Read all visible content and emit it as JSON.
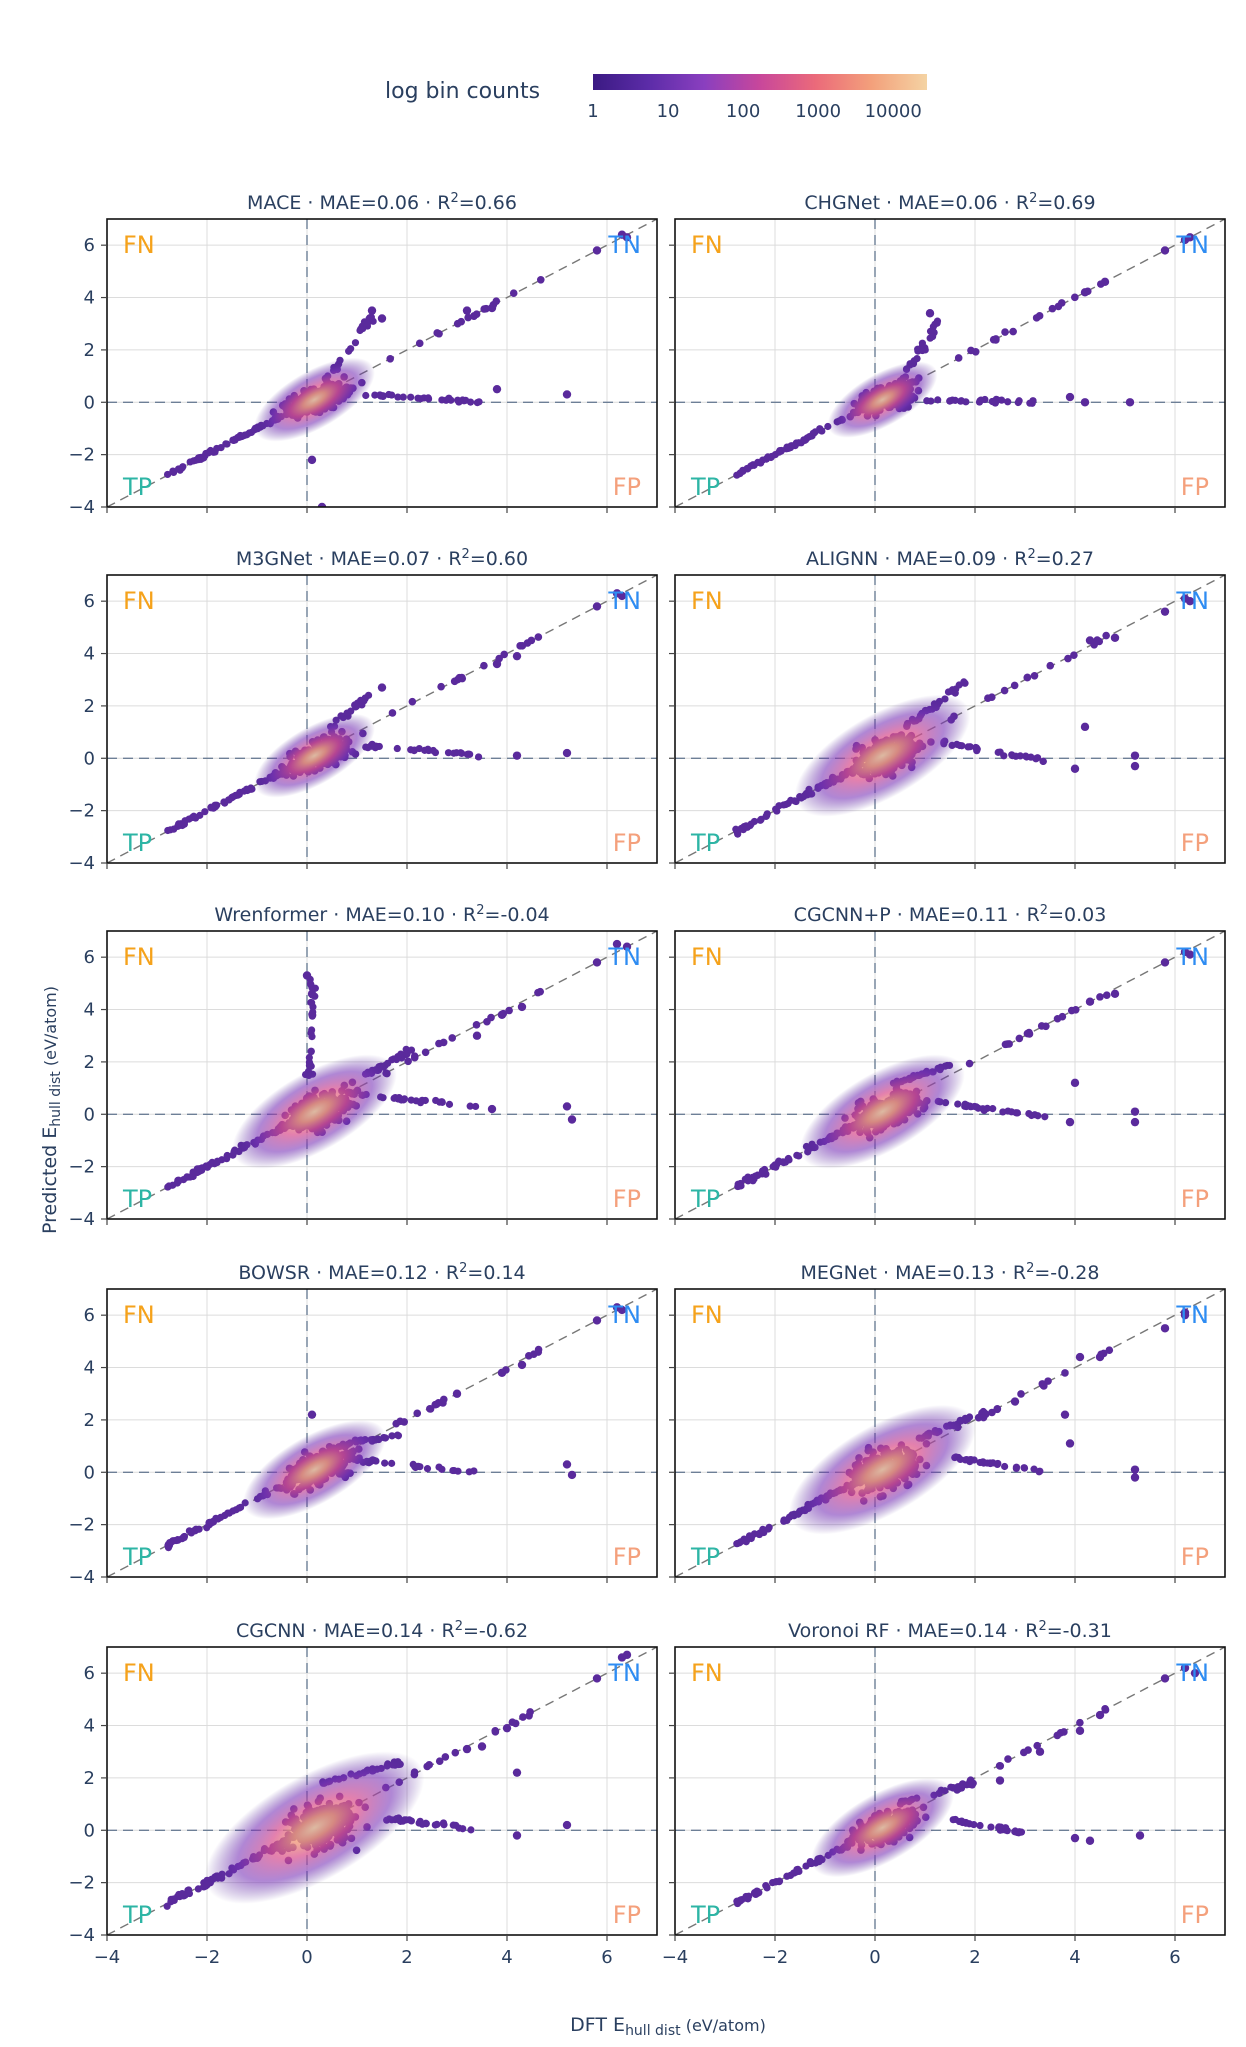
{
  "chart_data": {
    "type": "scatter",
    "subtype": "density-scatter-grid",
    "colorbar": {
      "title": "log bin counts",
      "tick_labels": [
        "1",
        "10",
        "100",
        "1000",
        "10000"
      ],
      "colors": [
        "#3b1a83",
        "#5c2ca8",
        "#8a3fbf",
        "#c8479b",
        "#eb6a7a",
        "#f3a07b",
        "#f4d3a3"
      ]
    },
    "xlabel": "DFT E",
    "xlabel_sub": "hull dist",
    "xlabel_unit": " (eV/atom)",
    "ylabel": "Predicted E",
    "ylabel_sub": "hull dist",
    "ylabel_unit": " (eV/atom)",
    "x_range": [
      -4,
      7
    ],
    "y_range": [
      -4,
      7
    ],
    "x_ticks": [
      -4,
      -2,
      0,
      2,
      4,
      6
    ],
    "y_ticks": [
      -4,
      -2,
      0,
      2,
      4,
      6
    ],
    "x_tick_labels": [
      "−4",
      "−2",
      "0",
      "2",
      "4",
      "6"
    ],
    "y_tick_labels": [
      "−4",
      "−2",
      "0",
      "2",
      "4",
      "6"
    ],
    "quadrant_labels": {
      "FN": "FN",
      "TN": "TN",
      "TP": "TP",
      "FP": "FP"
    },
    "quadrant_colors": {
      "FN": "#f5a21b",
      "TN": "#2e8cf2",
      "TP": "#2db5a5",
      "FP": "#f4a07c"
    },
    "panels": [
      {
        "model": "MACE",
        "mae": "MAE=0.06",
        "r2": "=0.66",
        "cloud": 1.1,
        "extremes": [
          [
            5.8,
            5.8
          ],
          [
            6.3,
            6.4
          ],
          [
            6.4,
            6.3
          ],
          [
            3.2,
            3.5
          ],
          [
            3.7,
            3.6
          ],
          [
            0.3,
            -4.0
          ],
          [
            0.1,
            -2.2
          ],
          [
            1.3,
            3.5
          ],
          [
            1.5,
            3.2
          ],
          [
            3.8,
            0.5
          ],
          [
            5.2,
            0.3
          ]
        ],
        "tails": [
          [
            [
              0.3,
              0.6
            ],
            [
              1.3,
              3.3
            ]
          ],
          [
            [
              1.0,
              0.3
            ],
            [
              3.5,
              0
            ]
          ]
        ]
      },
      {
        "model": "CHGNet",
        "mae": "MAE=0.06",
        "r2": "=0.69",
        "cloud": 1.0,
        "extremes": [
          [
            5.8,
            5.8
          ],
          [
            6.2,
            6.2
          ],
          [
            6.3,
            6.3
          ],
          [
            4.6,
            4.6
          ],
          [
            4.2,
            4.2
          ],
          [
            1.1,
            3.4
          ],
          [
            3.9,
            0.2
          ],
          [
            5.1,
            0
          ],
          [
            4.2,
            0
          ]
        ],
        "tails": [
          [
            [
              0.5,
              0.7
            ],
            [
              1.3,
              3.2
            ]
          ],
          [
            [
              0.9,
              0.1
            ],
            [
              3.4,
              0
            ]
          ]
        ]
      },
      {
        "model": "M3GNet",
        "mae": "MAE=0.07",
        "r2": "=0.60",
        "cloud": 1.1,
        "extremes": [
          [
            5.8,
            5.8
          ],
          [
            6.2,
            6.3
          ],
          [
            6.3,
            6.2
          ],
          [
            4.2,
            3.9
          ],
          [
            3.8,
            3.6
          ],
          [
            1.5,
            2.7
          ],
          [
            5.2,
            0.2
          ],
          [
            4.2,
            0.1
          ]
        ],
        "tails": [
          [
            [
              0.3,
              0.8
            ],
            [
              1.2,
              2.4
            ]
          ],
          [
            [
              1.1,
              0.5
            ],
            [
              3.7,
              0.1
            ]
          ]
        ]
      },
      {
        "model": "ALIGNN",
        "mae": "MAE=0.09",
        "r2": "=0.27",
        "cloud": 1.6,
        "extremes": [
          [
            5.8,
            5.6
          ],
          [
            6.2,
            6.1
          ],
          [
            6.3,
            6.0
          ],
          [
            4.8,
            4.6
          ],
          [
            4.3,
            4.5
          ],
          [
            4.2,
            1.2
          ],
          [
            5.2,
            0.1
          ],
          [
            4.0,
            -0.4
          ],
          [
            5.2,
            -0.3
          ]
        ],
        "tails": [
          [
            [
              0.6,
              1.2
            ],
            [
              1.8,
              2.9
            ]
          ],
          [
            [
              1.3,
              0.6
            ],
            [
              3.5,
              -0.1
            ]
          ]
        ]
      },
      {
        "model": "Wrenformer",
        "mae": "MAE=0.10",
        "r2": "=-0.04",
        "cloud": 1.5,
        "extremes": [
          [
            6.2,
            6.5
          ],
          [
            6.4,
            6.4
          ],
          [
            5.8,
            5.8
          ],
          [
            4.3,
            4.1
          ],
          [
            3.9,
            3.8
          ],
          [
            3.4,
            3.0
          ],
          [
            0.0,
            5.3
          ],
          [
            0.1,
            4.6
          ],
          [
            5.2,
            0.3
          ],
          [
            5.3,
            -0.2
          ],
          [
            3.7,
            0.2
          ]
        ],
        "tails": [
          [
            [
              0.05,
              1.5
            ],
            [
              0.1,
              5.2
            ]
          ],
          [
            [
              0.8,
              0.8
            ],
            [
              3.4,
              0.3
            ]
          ],
          [
            [
              1.2,
              1.5
            ],
            [
              2.2,
              2.6
            ]
          ]
        ]
      },
      {
        "model": "CGCNN+P",
        "mae": "MAE=0.11",
        "r2": "=0.03",
        "cloud": 1.5,
        "extremes": [
          [
            5.8,
            5.8
          ],
          [
            6.2,
            6.2
          ],
          [
            6.3,
            6.1
          ],
          [
            4.8,
            4.6
          ],
          [
            4.3,
            4.3
          ],
          [
            4.0,
            1.2
          ],
          [
            5.2,
            0.1
          ],
          [
            3.9,
            -0.3
          ],
          [
            5.2,
            -0.3
          ]
        ],
        "tails": [
          [
            [
              0.4,
              1.2
            ],
            [
              1.5,
              1.9
            ]
          ],
          [
            [
              1.2,
              0.5
            ],
            [
              3.4,
              -0.1
            ]
          ]
        ]
      },
      {
        "model": "BOWSR",
        "mae": "MAE=0.12",
        "r2": "=0.14",
        "cloud": 1.3,
        "extremes": [
          [
            5.8,
            5.8
          ],
          [
            6.2,
            6.3
          ],
          [
            6.3,
            6.2
          ],
          [
            4.3,
            4.1
          ],
          [
            3.9,
            3.8
          ],
          [
            3.0,
            3.0
          ],
          [
            5.2,
            0.3
          ],
          [
            5.3,
            -0.1
          ],
          [
            0.1,
            2.2
          ]
        ],
        "tails": [
          [
            [
              0.3,
              0.9
            ],
            [
              1.8,
              1.4
            ]
          ],
          [
            [
              0.9,
              0.5
            ],
            [
              3.4,
              0
            ]
          ]
        ]
      },
      {
        "model": "MEGNet",
        "mae": "MAE=0.13",
        "r2": "=-0.28",
        "cloud": 1.7,
        "extremes": [
          [
            5.8,
            5.5
          ],
          [
            6.2,
            6.0
          ],
          [
            6.2,
            6.1
          ],
          [
            4.5,
            4.4
          ],
          [
            4.1,
            4.4
          ],
          [
            3.8,
            2.2
          ],
          [
            3.9,
            1.1
          ],
          [
            5.2,
            0.1
          ],
          [
            5.2,
            -0.2
          ],
          [
            2.8,
            2.7
          ]
        ],
        "tails": [
          [
            [
              0.8,
              1.2
            ],
            [
              2.2,
              2.3
            ]
          ],
          [
            [
              1.5,
              0.6
            ],
            [
              3.4,
              0.0
            ]
          ]
        ]
      },
      {
        "model": "CGCNN",
        "mae": "MAE=0.14",
        "r2": "=-0.62",
        "cloud": 2.0,
        "extremes": [
          [
            5.8,
            5.8
          ],
          [
            6.3,
            6.6
          ],
          [
            6.4,
            6.7
          ],
          [
            4.2,
            2.2
          ],
          [
            4.0,
            3.9
          ],
          [
            4.2,
            -0.2
          ],
          [
            5.2,
            0.2
          ],
          [
            3.5,
            3.2
          ],
          [
            3.2,
            3.1
          ]
        ],
        "tails": [
          [
            [
              0.3,
              1.8
            ],
            [
              1.9,
              2.6
            ]
          ],
          [
            [
              1.5,
              0.5
            ],
            [
              3.4,
              0.0
            ]
          ]
        ]
      },
      {
        "model": "Voronoi RF",
        "mae": "MAE=0.14",
        "r2": "=-0.31",
        "cloud": 1.3,
        "extremes": [
          [
            5.8,
            5.8
          ],
          [
            6.2,
            6.2
          ],
          [
            6.4,
            6.0
          ],
          [
            4.5,
            4.4
          ],
          [
            4.1,
            3.8
          ],
          [
            4.0,
            -0.3
          ],
          [
            4.3,
            -0.4
          ],
          [
            5.3,
            -0.2
          ],
          [
            3.3,
            3.0
          ],
          [
            2.5,
            1.9
          ]
        ],
        "tails": [
          [
            [
              0.4,
              1.0
            ],
            [
              2.0,
              1.8
            ]
          ],
          [
            [
              1.5,
              0.4
            ],
            [
              3.0,
              -0.1
            ]
          ]
        ]
      }
    ]
  }
}
